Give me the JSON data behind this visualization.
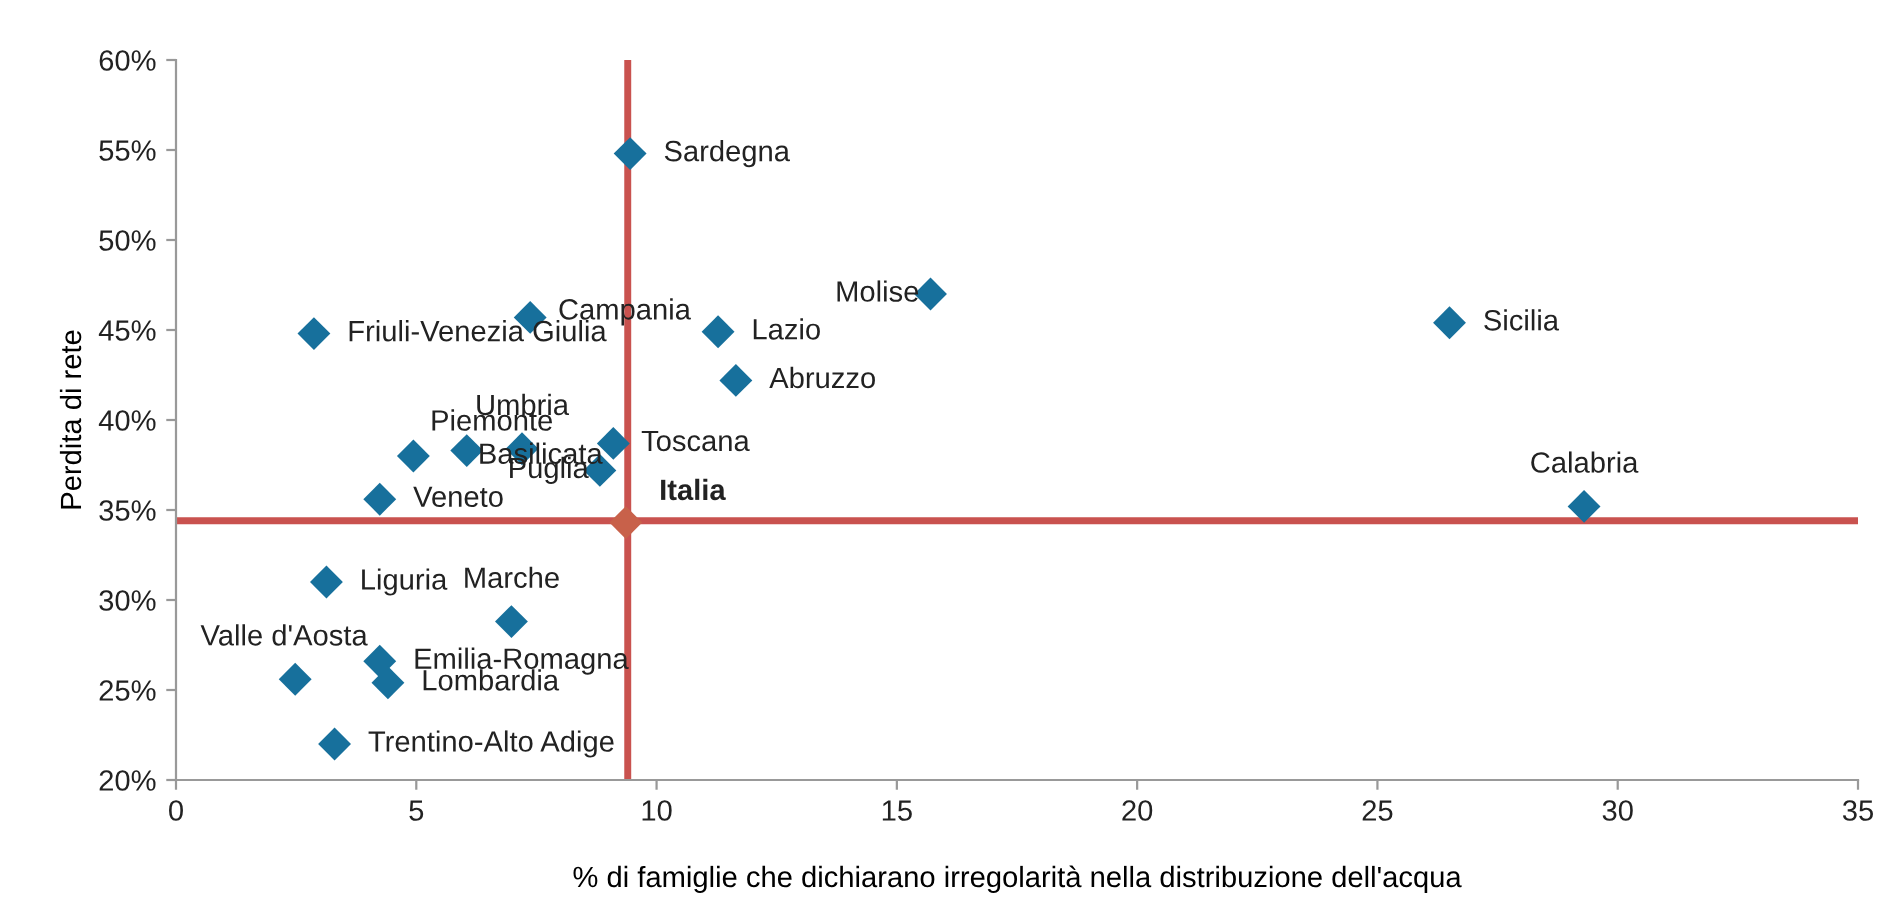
{
  "chart_data": {
    "type": "scatter",
    "xlabel": "% di famiglie che dichiarano irregolarità nella distribuzione dell'acqua",
    "ylabel": "Perdita di rete",
    "x": [
      9.45,
      7.37,
      2.87,
      11.28,
      11.65,
      15.7,
      26.5,
      29.3,
      4.94,
      6.05,
      7.2,
      9.1,
      8.82,
      4.24,
      9.36,
      3.13,
      6.98,
      2.48,
      4.24,
      4.41,
      3.3
    ],
    "values": [
      54.8,
      45.7,
      44.8,
      44.9,
      42.2,
      47.0,
      45.4,
      35.2,
      38.0,
      38.3,
      38.4,
      38.7,
      37.2,
      35.6,
      34.3,
      31.0,
      28.8,
      25.6,
      26.6,
      25.4,
      22.0
    ],
    "colors": [
      "#17709c",
      "#17709c",
      "#17709c",
      "#17709c",
      "#17709c",
      "#17709c",
      "#17709c",
      "#17709c",
      "#17709c",
      "#17709c",
      "#17709c",
      "#17709c",
      "#17709c",
      "#17709c",
      "#c8614a",
      "#17709c",
      "#17709c",
      "#17709c",
      "#17709c",
      "#17709c",
      "#17709c"
    ],
    "marker": "diamond",
    "annotations": [
      {
        "text": "Sardegna",
        "x": 9.45,
        "y": 54.8
      },
      {
        "text": "Campania",
        "x": 7.37,
        "y": 45.7
      },
      {
        "text": "Friuli-Venezia Giulia",
        "x": 2.87,
        "y": 44.8
      },
      {
        "text": "Lazio",
        "x": 11.28,
        "y": 44.9
      },
      {
        "text": "Abruzzo",
        "x": 11.65,
        "y": 42.2
      },
      {
        "text": "Molise",
        "x": 15.7,
        "y": 47.0
      },
      {
        "text": "Sicilia",
        "x": 26.5,
        "y": 45.4
      },
      {
        "text": "Calabria",
        "x": 29.3,
        "y": 35.2
      },
      {
        "text": "Piemonte",
        "x": 4.94,
        "y": 38.0
      },
      {
        "text": "Basilicata",
        "x": 6.05,
        "y": 38.3
      },
      {
        "text": "Umbria",
        "x": 7.2,
        "y": 38.4
      },
      {
        "text": "Toscana",
        "x": 9.1,
        "y": 38.7
      },
      {
        "text": "Puglia",
        "x": 8.82,
        "y": 37.2
      },
      {
        "text": "Veneto",
        "x": 4.24,
        "y": 35.6
      },
      {
        "text": "Italia",
        "x": 9.36,
        "y": 34.3
      },
      {
        "text": "Liguria",
        "x": 3.13,
        "y": 31.0
      },
      {
        "text": "Marche",
        "x": 6.98,
        "y": 28.8
      },
      {
        "text": "Valle d'Aosta",
        "x": 2.48,
        "y": 25.6
      },
      {
        "text": "Emilia-Romagna",
        "x": 4.24,
        "y": 26.6
      },
      {
        "text": "Lombardia",
        "x": 4.41,
        "y": 25.4
      },
      {
        "text": "Trentino-Alto Adige",
        "x": 3.3,
        "y": 22.0
      }
    ],
    "ref_lines": [
      {
        "axis": "x",
        "value": 9.4,
        "color": "#c9524f"
      },
      {
        "axis": "y",
        "value": 34.4,
        "color": "#c9524f"
      }
    ],
    "xlim": [
      0,
      35
    ],
    "xticks": [
      0,
      5,
      10,
      15,
      20,
      25,
      30,
      35
    ],
    "ylim": [
      20,
      60
    ],
    "yticks": [
      {
        "value": 20,
        "label": "20%"
      },
      {
        "value": 25,
        "label": "25%"
      },
      {
        "value": 30,
        "label": "30%"
      },
      {
        "value": 35,
        "label": "35%"
      },
      {
        "value": 40,
        "label": "40%"
      },
      {
        "value": 45,
        "label": "45%"
      },
      {
        "value": 50,
        "label": "50%"
      },
      {
        "value": 55,
        "label": "55%"
      },
      {
        "value": 60,
        "label": "60%"
      }
    ],
    "grid": false,
    "legend": false
  }
}
